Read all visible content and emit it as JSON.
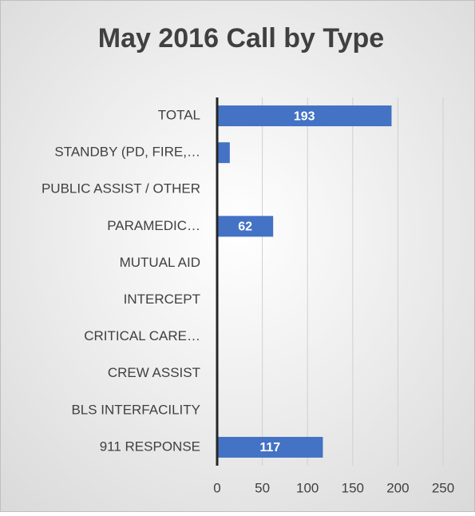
{
  "chart_data": {
    "type": "hbar",
    "title": "May 2016 Call by Type",
    "categories": [
      "TOTAL",
      "STANDBY (PD, FIRE,…",
      "PUBLIC ASSIST / OTHER",
      "PARAMEDIC…",
      "MUTUAL AID",
      "INTERCEPT",
      "CRITICAL CARE…",
      "CREW ASSIST",
      "BLS INTERFACILITY",
      "911 RESPONSE"
    ],
    "values": [
      193,
      14,
      0,
      62,
      0,
      0,
      0,
      0,
      0,
      117
    ],
    "color": "#4472c4",
    "xlim": [
      0,
      250
    ],
    "xticks": [
      0,
      50,
      100,
      150,
      200,
      250
    ],
    "grid": true
  }
}
